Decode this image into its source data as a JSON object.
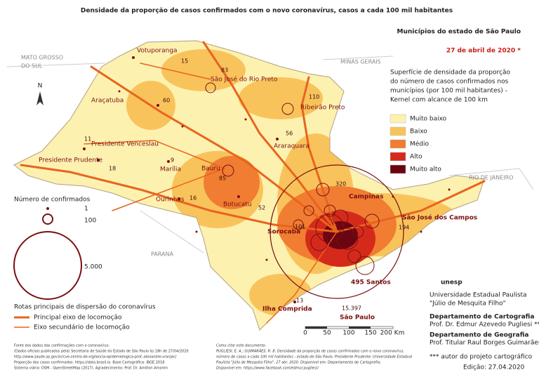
{
  "header": {
    "title": "Densidade da proporção de casos confirmados com o novo coronavírus, casos a cada 100 mil habitantes",
    "subtitle": "Municípios do estado de São Paulo",
    "date": "27 de abril de 2020 *"
  },
  "neighbors": {
    "ms_1": "MATO GROSSO",
    "ms_2": "DO SUL",
    "mg": "MINAS GERAIS",
    "rj": "RIO DE JANEIRO",
    "pr": "PARANÁ"
  },
  "compass": "N",
  "density_legend": {
    "title_lines": [
      "Superfície de densidade da proporção",
      "do número de casos confirmados nos",
      "municípios (por 100 mil habitantes) -",
      "Kernel com alcance de 100 km"
    ],
    "items": [
      {
        "label": "Muito baixo",
        "color": "#fdf1b0"
      },
      {
        "label": "Baixo",
        "color": "#f9c35c"
      },
      {
        "label": "Médio",
        "color": "#f07d32"
      },
      {
        "label": "Alto",
        "color": "#d52a1b"
      },
      {
        "label": "Muito alto",
        "color": "#6a0512"
      }
    ]
  },
  "bubble_legend": {
    "title": "Número de confirmados",
    "items": [
      "1",
      "100",
      "5.000"
    ]
  },
  "routes_legend": {
    "title": "Rotas principais de dispersão do coronavírus",
    "items": [
      "Principal eixo de locomoção",
      "Eixo secundário de locomoção"
    ]
  },
  "cities": [
    {
      "name": "Votuporanga",
      "cases": "15"
    },
    {
      "name": "São José do Rio Preto",
      "cases": "83"
    },
    {
      "name": "Ribeirão Preto",
      "cases": "110"
    },
    {
      "name": "Araçatuba",
      "cases": "60"
    },
    {
      "name": "Araraquara",
      "cases": "56"
    },
    {
      "name": "Presidente Venceslau",
      "cases": "11"
    },
    {
      "name": "Presidente Prudente",
      "cases": "18"
    },
    {
      "name": "Marília",
      "cases": "9"
    },
    {
      "name": "Bauru",
      "cases": "85"
    },
    {
      "name": "Ourinhos",
      "cases": "16"
    },
    {
      "name": "Botucatu",
      "cases": "52"
    },
    {
      "name": "Campinas",
      "cases": "320"
    },
    {
      "name": "São José dos Campos",
      "cases": "194"
    },
    {
      "name": "Sorocaba",
      "cases": "101"
    },
    {
      "name": "Ilha Comprida",
      "cases": "13"
    },
    {
      "name": "São Paulo",
      "cases": "15.397"
    }
  ],
  "santos": "495 Santos",
  "scale": [
    "0",
    "50",
    "100",
    "150",
    "200 Km"
  ],
  "sources": [
    "Fonte dos dados das confirmações com o coronavírus:",
    "(Dados oficiais publicados pela) Secretaria de Saúde do Estado de São Paulo às 18h de 27/04/2020",
    "http://www.saude.sp.gov.br/cve-centro-de-vigilancia-epidemiologica-prof.-alexandre-vranjac/",
    "Proporção dos casos confirmados: https://data.brasil.io. Base Cartográfica: IBGE 2018",
    "Sistema viário: OSM - OpenStreetMap (2017). Agradecimento: Prof. Dr. Amilton Amorim"
  ],
  "citation": [
    "Como citar este documento:",
    "PUGLIESI, E. A.; GUIMARÃES, R. B. Densidade da proporção de casos confirmados com o novo coronavírus,",
    "número de casos a cada 100 mil habitantes - estado de São Paulo. Presidente Prudente: Universidade Estadual",
    "Paulista \"Júlio de Mesquita Filho\", 27 abr. 2020. Disponível em: Departamento de Cartografia;",
    "Disponível em: https://www.facebook.com/edmur.pugliesi/"
  ],
  "institution": {
    "logo": "unesp",
    "name": "Universidade Estadual Paulista",
    "subname": "\"Júlio de Mesquita Filho\"",
    "dept1": "Departamento de Cartografia",
    "person1": "Prof. Dr. Edmur Azevedo Pugliesi ***",
    "dept2": "Departamento de Geografia",
    "person2": "Prof. Titular Raul Borges Guimarães",
    "note": "*** autor do projeto cartográfico",
    "edition": "Edição: 27.04.2020"
  }
}
